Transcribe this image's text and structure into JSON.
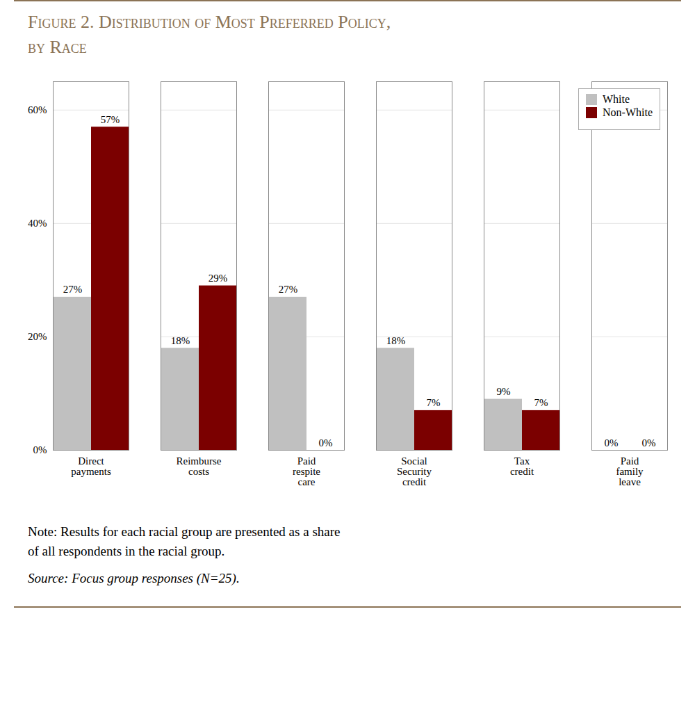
{
  "chart_data": {
    "type": "bar",
    "title": "Figure 2. Distribution of Most Preferred Policy,\nby Race",
    "categories": [
      "Direct\npayments",
      "Reimburse\ncosts",
      "Paid\nrespite\ncare",
      "Social\nSecurity\ncredit",
      "Tax\ncredit",
      "Paid\nfamily\nleave"
    ],
    "series": [
      {
        "name": "White",
        "color": "#C0C0C0",
        "values": [
          27,
          18,
          27,
          18,
          9,
          0
        ],
        "value_labels": [
          "27%",
          "18%",
          "27%",
          "18%",
          "9%",
          "0%"
        ]
      },
      {
        "name": "Non-White",
        "color": "#7B0000",
        "values": [
          57,
          29,
          0,
          7,
          7,
          0
        ],
        "value_labels": [
          "57%",
          "29%",
          "0%",
          "7%",
          "7%",
          "0%"
        ]
      }
    ],
    "ylim": [
      0,
      65
    ],
    "yticks": [
      {
        "value": 0,
        "label": "0%"
      },
      {
        "value": 20,
        "label": "20%"
      },
      {
        "value": 40,
        "label": "40%"
      },
      {
        "value": 60,
        "label": "60%"
      }
    ],
    "grid": true,
    "legend": "upper right",
    "data_labels": true,
    "annotations": [
      "Note: Results for each racial group are presented as a share\nof all respondents in the racial group.",
      "Source: Focus group responses (N=25)."
    ]
  }
}
